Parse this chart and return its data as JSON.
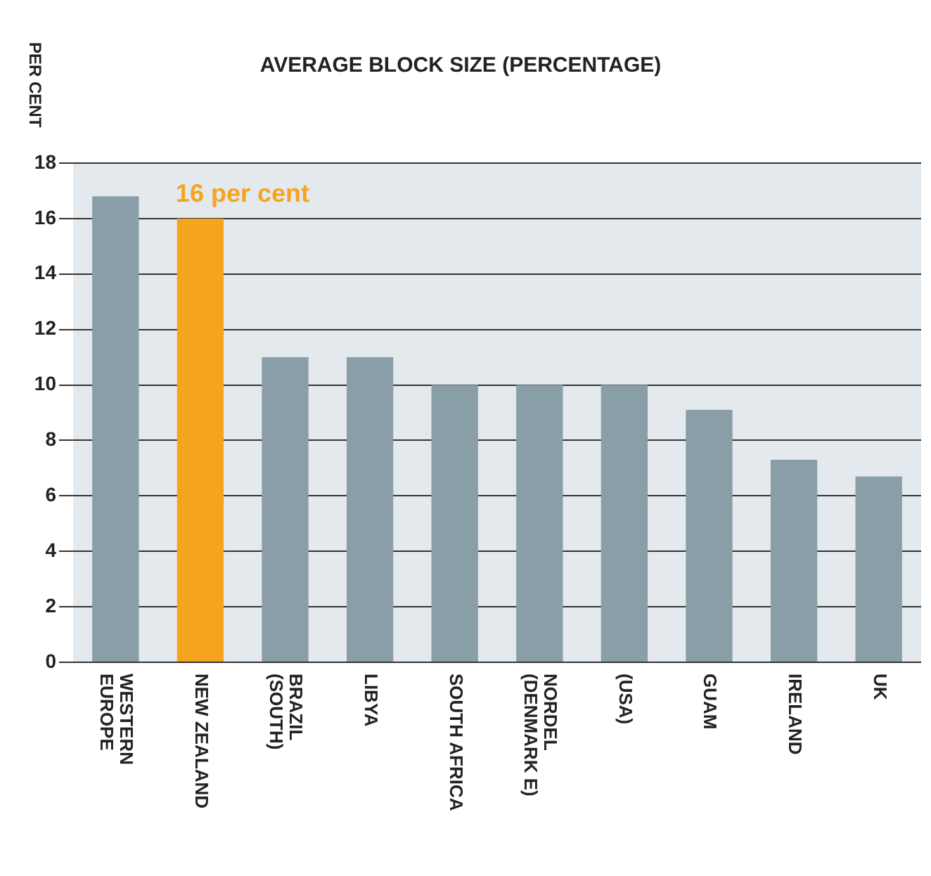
{
  "chart_data": {
    "type": "bar",
    "title": "AVERAGE BLOCK SIZE (PERCENTAGE)",
    "ylabel": "PER CENT",
    "categories": [
      "WESTERN EUROPE",
      "NEW ZEALAND",
      "BRAZIL (SOUTH)",
      "LIBYA",
      "SOUTH AFRICA",
      "NORDEL (DENMARK E)",
      "(USA)",
      "GUAM",
      "IRELAND",
      "UK"
    ],
    "values": [
      16.8,
      16,
      11,
      11,
      10,
      10,
      10,
      9.1,
      7.3,
      6.7
    ],
    "colors": [
      "#8a9ea8",
      "#f5a41f",
      "#8a9ea8",
      "#8a9ea8",
      "#8a9ea8",
      "#8a9ea8",
      "#8a9ea8",
      "#8a9ea8",
      "#8a9ea8",
      "#8a9ea8"
    ],
    "ylim": [
      0,
      18
    ],
    "yticks": [
      0,
      2,
      4,
      6,
      8,
      10,
      12,
      14,
      16,
      18
    ],
    "grid": "y",
    "annotations": [
      {
        "text": "16 per cent",
        "x": "NEW ZEALAND",
        "y": 16
      }
    ]
  }
}
